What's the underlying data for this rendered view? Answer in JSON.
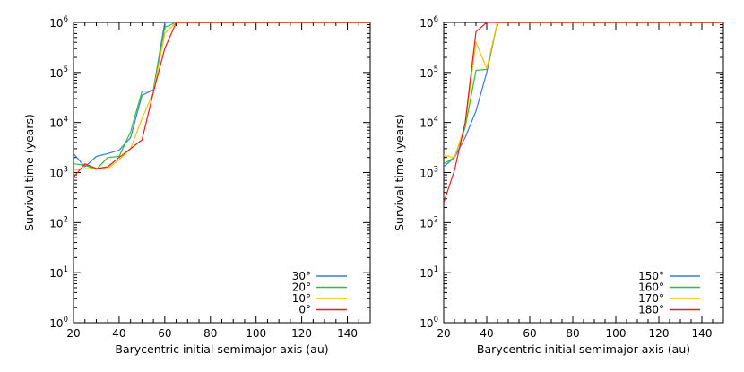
{
  "chart_data": [
    {
      "type": "line",
      "xlabel": "Barycentric initial semimajor axis (au)",
      "ylabel": "Survival time (years)",
      "xlim": [
        20,
        150
      ],
      "ylim": [
        1,
        1000000
      ],
      "yscale": "log",
      "xticks": [
        20,
        40,
        60,
        80,
        100,
        120,
        140
      ],
      "yticks": [
        {
          "value": 1,
          "base": "10",
          "exp": "0"
        },
        {
          "value": 10,
          "base": "10",
          "exp": "1"
        },
        {
          "value": 100,
          "base": "10",
          "exp": "2"
        },
        {
          "value": 1000,
          "base": "10",
          "exp": "3"
        },
        {
          "value": 10000,
          "base": "10",
          "exp": "4"
        },
        {
          "value": 100000,
          "base": "10",
          "exp": "5"
        },
        {
          "value": 1000000,
          "base": "10",
          "exp": "6"
        }
      ],
      "legend_position": "bottom-right",
      "grid": false,
      "series": [
        {
          "name": "30°",
          "color": "#3a78e0",
          "x": [
            20,
            25,
            30,
            35,
            40,
            45,
            50,
            55,
            60,
            65,
            150
          ],
          "y": [
            2400,
            1300,
            2100,
            2400,
            2800,
            5000,
            35000,
            45000,
            1000000,
            1000000,
            1000000
          ]
        },
        {
          "name": "20°",
          "color": "#2ec02e",
          "x": [
            20,
            25,
            30,
            35,
            40,
            45,
            50,
            55,
            60,
            65,
            150
          ],
          "y": [
            1500,
            1400,
            1150,
            2000,
            2100,
            6500,
            42000,
            43000,
            800000,
            1000000,
            1000000
          ]
        },
        {
          "name": "10°",
          "color": "#f2c200",
          "x": [
            20,
            25,
            30,
            35,
            40,
            45,
            50,
            55,
            60,
            65,
            150
          ],
          "y": [
            1100,
            1200,
            1200,
            1200,
            1800,
            3000,
            12000,
            40000,
            600000,
            1000000,
            1000000
          ]
        },
        {
          "name": "0°",
          "color": "#e02020",
          "x": [
            20,
            25,
            30,
            35,
            40,
            45,
            50,
            55,
            60,
            65,
            150
          ],
          "y": [
            800,
            1500,
            1200,
            1300,
            2000,
            3000,
            4500,
            40000,
            300000,
            1000000,
            1000000
          ]
        }
      ]
    },
    {
      "type": "line",
      "xlabel": "Barycentric initial semimajor axis (au)",
      "ylabel": "Survival time (years)",
      "xlim": [
        20,
        150
      ],
      "ylim": [
        1,
        1000000
      ],
      "yscale": "log",
      "xticks": [
        20,
        40,
        60,
        80,
        100,
        120,
        140
      ],
      "yticks": [
        {
          "value": 1,
          "base": "10",
          "exp": "0"
        },
        {
          "value": 10,
          "base": "10",
          "exp": "1"
        },
        {
          "value": 100,
          "base": "10",
          "exp": "2"
        },
        {
          "value": 1000,
          "base": "10",
          "exp": "3"
        },
        {
          "value": 10000,
          "base": "10",
          "exp": "4"
        },
        {
          "value": 100000,
          "base": "10",
          "exp": "5"
        },
        {
          "value": 1000000,
          "base": "10",
          "exp": "6"
        }
      ],
      "legend_position": "bottom-right",
      "grid": false,
      "series": [
        {
          "name": "150°",
          "color": "#3a78e0",
          "x": [
            20,
            25,
            30,
            35,
            40,
            45,
            55,
            60,
            150
          ],
          "y": [
            1300,
            2000,
            5000,
            17000,
            100000,
            1000000,
            1000000,
            1000000,
            1000000
          ]
        },
        {
          "name": "160°",
          "color": "#2ec02e",
          "x": [
            20,
            25,
            30,
            35,
            40,
            45,
            150
          ],
          "y": [
            1500,
            2000,
            8000,
            110000,
            115000,
            1000000,
            1000000
          ]
        },
        {
          "name": "170°",
          "color": "#f2c200",
          "x": [
            20,
            25,
            30,
            35,
            40,
            45,
            150
          ],
          "y": [
            2200,
            2000,
            9000,
            400000,
            120000,
            1000000,
            1000000
          ]
        },
        {
          "name": "180°",
          "color": "#e02020",
          "x": [
            20,
            25,
            30,
            35,
            40,
            45,
            150
          ],
          "y": [
            250,
            1100,
            10000,
            650000,
            1000000,
            1000000,
            1000000
          ]
        }
      ]
    }
  ]
}
